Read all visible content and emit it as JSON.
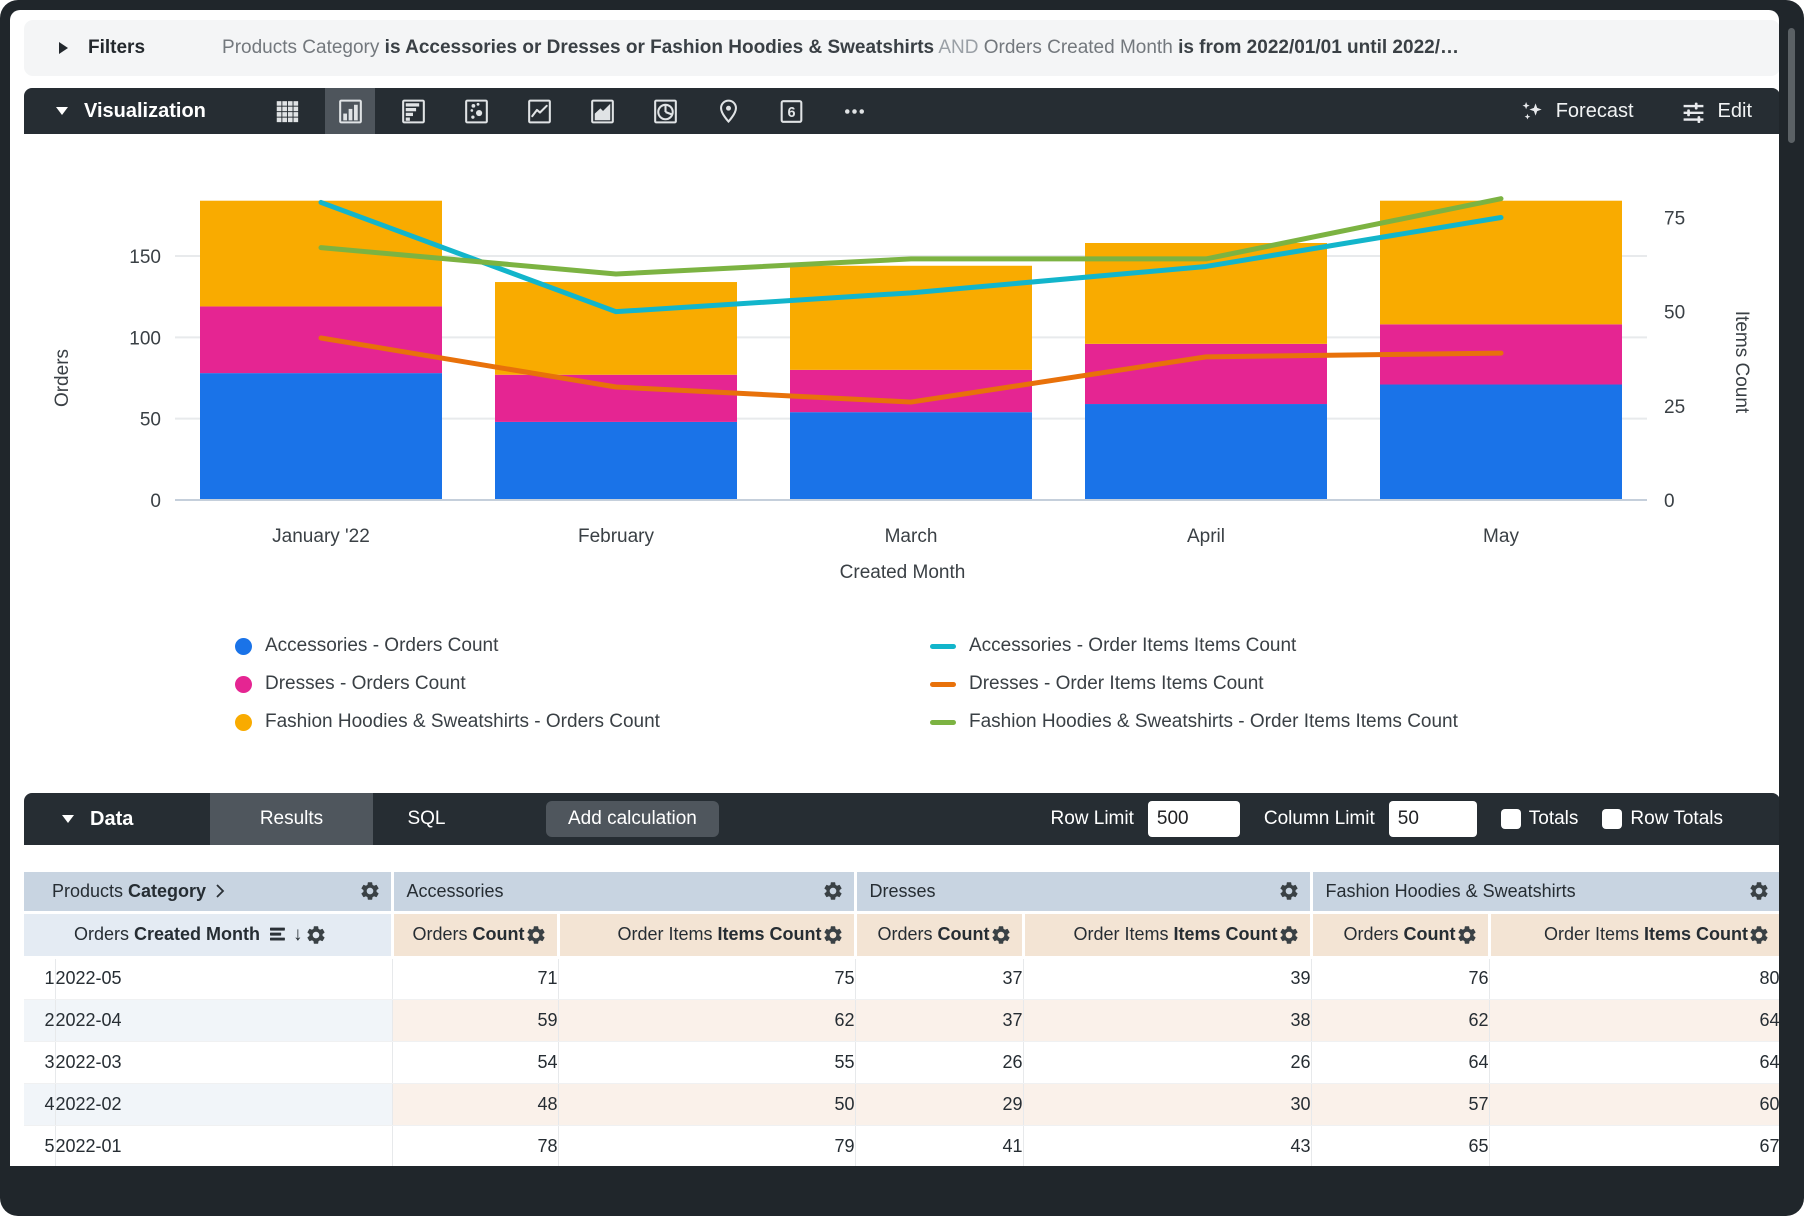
{
  "filters": {
    "label": "Filters",
    "segments": [
      {
        "text": "Products Category ",
        "style": "field"
      },
      {
        "text": "is Accessories or Dresses or Fashion Hoodies & Sweatshirts",
        "style": "value"
      },
      {
        "text": " AND ",
        "style": "and"
      },
      {
        "text": "Orders Created Month ",
        "style": "field"
      },
      {
        "text": "is from 2022/01/01 until 2022/…",
        "style": "value"
      }
    ]
  },
  "viz": {
    "label": "Visualization",
    "forecast_label": "Forecast",
    "edit_label": "Edit",
    "single_value_glyph": "6",
    "icons": [
      {
        "name": "table",
        "selected": false
      },
      {
        "name": "column-chart",
        "selected": true
      },
      {
        "name": "bar-chart",
        "selected": false
      },
      {
        "name": "scatter",
        "selected": false
      },
      {
        "name": "line-chart",
        "selected": false
      },
      {
        "name": "area-chart",
        "selected": false
      },
      {
        "name": "pie-chart",
        "selected": false
      },
      {
        "name": "map",
        "selected": false
      },
      {
        "name": "single-value",
        "selected": false
      },
      {
        "name": "more",
        "selected": false
      }
    ]
  },
  "chart_data": {
    "type": "combo",
    "stacked": true,
    "categories": [
      "January '22",
      "February",
      "March",
      "April",
      "May"
    ],
    "bar_series": [
      {
        "name": "Accessories - Orders Count",
        "color": "#1A73E8",
        "axis": "left",
        "values": [
          78,
          48,
          54,
          59,
          71
        ]
      },
      {
        "name": "Dresses - Orders Count",
        "color": "#E52592",
        "axis": "left",
        "values": [
          41,
          29,
          26,
          37,
          37
        ]
      },
      {
        "name": "Fashion Hoodies & Sweatshirts - Orders Count",
        "color": "#F9AB00",
        "axis": "left",
        "values": [
          65,
          57,
          64,
          62,
          76
        ]
      }
    ],
    "line_series": [
      {
        "name": "Accessories - Order Items Items Count",
        "color": "#12B5CB",
        "axis": "right",
        "values": [
          79,
          50,
          55,
          62,
          75
        ]
      },
      {
        "name": "Dresses - Order Items Items Count",
        "color": "#E8710A",
        "axis": "right",
        "values": [
          43,
          30,
          26,
          38,
          39
        ]
      },
      {
        "name": "Fashion Hoodies & Sweatshirts - Order Items Items Count",
        "color": "#7CB342",
        "axis": "right",
        "values": [
          67,
          60,
          64,
          64,
          80
        ]
      }
    ],
    "left_axis": {
      "title": "Orders",
      "ticks": [
        0,
        50,
        100,
        150
      ]
    },
    "right_axis": {
      "title": "Items Count",
      "ticks": [
        0,
        25,
        50,
        75
      ]
    },
    "xlabel": "Created Month",
    "legend_position": "bottom",
    "grid": true
  },
  "data_bar": {
    "label": "Data",
    "tabs": [
      "Results",
      "SQL"
    ],
    "active_tab": "Results",
    "add_calculation": "Add calculation",
    "row_limit_label": "Row Limit",
    "row_limit": "500",
    "column_limit_label": "Column Limit",
    "column_limit": "50",
    "totals_label": "Totals",
    "row_totals_label": "Row Totals",
    "totals_checked": false,
    "row_totals_checked": false
  },
  "table": {
    "dimension_section": {
      "view": "Products",
      "field": "Category"
    },
    "dimension_column": {
      "view": "Orders",
      "field": "Created Month"
    },
    "sections": [
      {
        "name": "Accessories",
        "columns": [
          {
            "view": "Orders",
            "field": "Count"
          },
          {
            "view": "Order Items",
            "field": "Items Count"
          }
        ]
      },
      {
        "name": "Dresses",
        "columns": [
          {
            "view": "Orders",
            "field": "Count"
          },
          {
            "view": "Order Items",
            "field": "Items Count"
          }
        ]
      },
      {
        "name": "Fashion Hoodies & Sweatshirts",
        "columns": [
          {
            "view": "Orders",
            "field": "Count"
          },
          {
            "view": "Order Items",
            "field": "Items Count"
          }
        ]
      }
    ],
    "rows": [
      {
        "n": "1",
        "dim": "2022-05",
        "values": [
          71,
          75,
          37,
          39,
          76,
          80
        ]
      },
      {
        "n": "2",
        "dim": "2022-04",
        "values": [
          59,
          62,
          37,
          38,
          62,
          64
        ]
      },
      {
        "n": "3",
        "dim": "2022-03",
        "values": [
          54,
          55,
          26,
          26,
          64,
          64
        ]
      },
      {
        "n": "4",
        "dim": "2022-02",
        "values": [
          48,
          50,
          29,
          30,
          57,
          60
        ]
      },
      {
        "n": "5",
        "dim": "2022-01",
        "values": [
          78,
          79,
          41,
          43,
          65,
          67
        ]
      }
    ]
  }
}
